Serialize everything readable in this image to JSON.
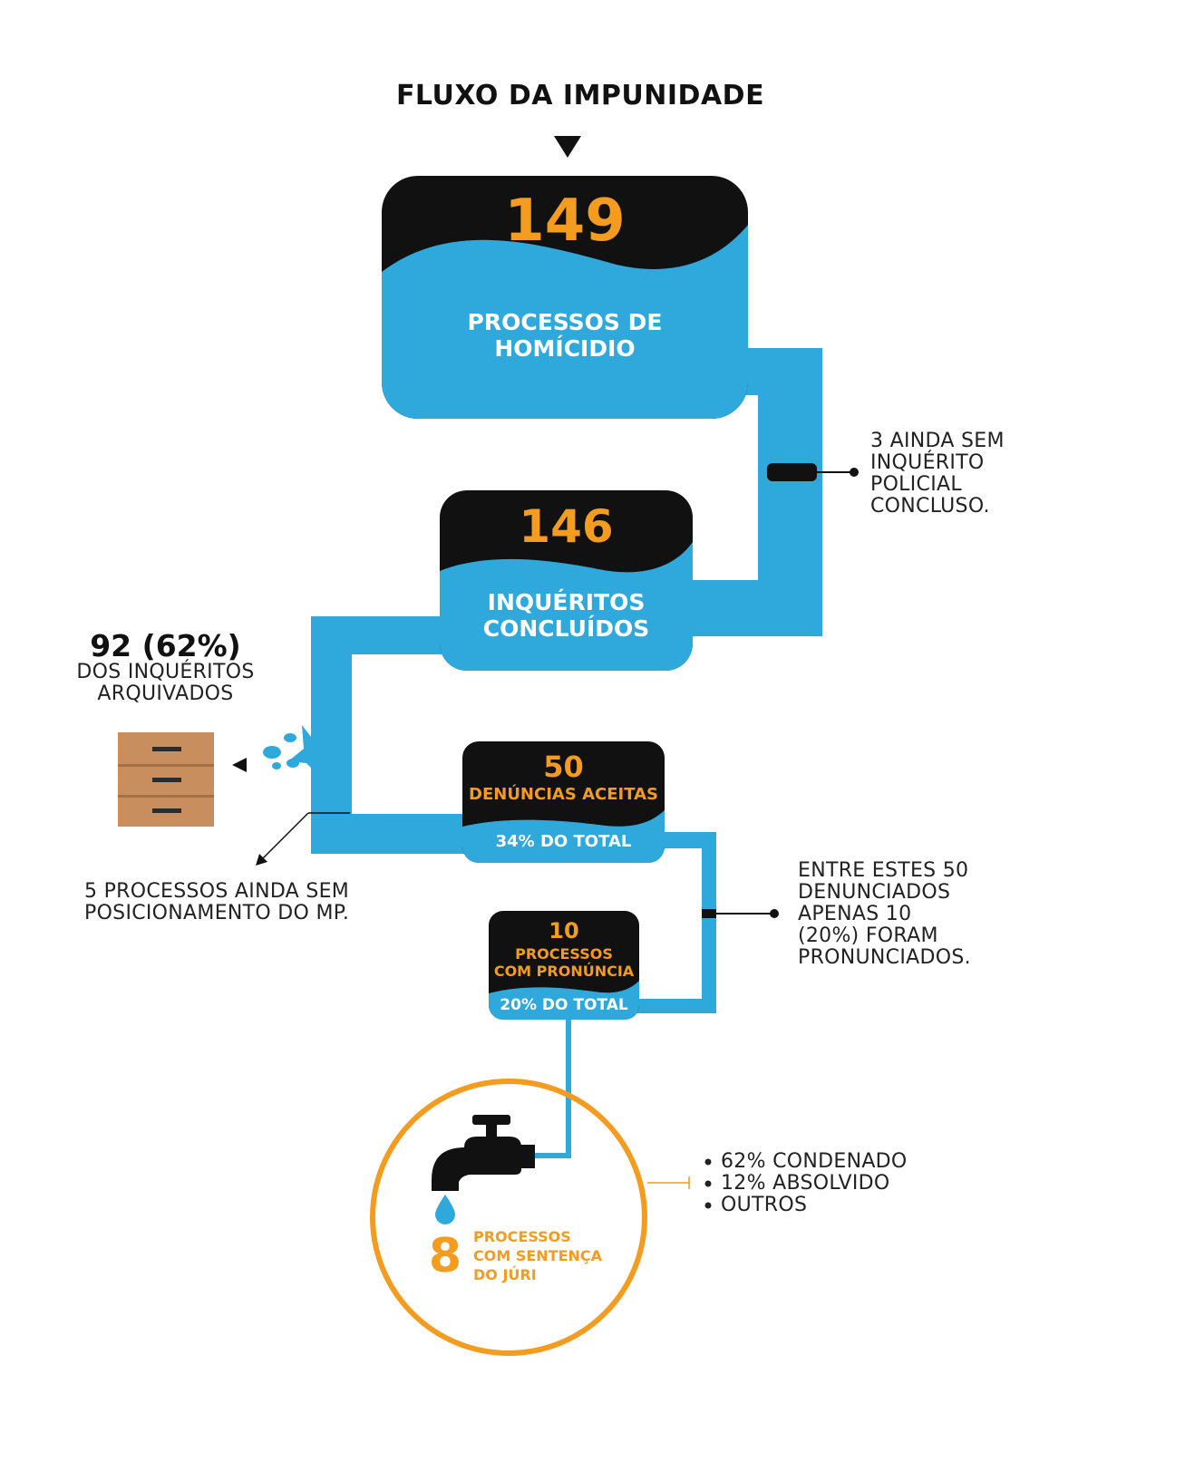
{
  "title": "FLUXO DA IMPUNIDADE",
  "colors": {
    "water": "#2fa8dc",
    "black": "#111111",
    "orange": "#f39c1f",
    "drawer": "#c98e5e"
  },
  "nodes": {
    "homicidios": {
      "number": "149",
      "line1": "PROCESSOS DE",
      "line2": "HOMÍCIDIO"
    },
    "inqueritos": {
      "number": "146",
      "line1": "INQUÉRITOS",
      "line2": "CONCLUÍDOS"
    },
    "denuncias": {
      "number": "50",
      "label": "DENÚNCIAS ACEITAS",
      "pct": "34% DO TOTAL"
    },
    "pronuncia": {
      "number": "10",
      "line1": "PROCESSOS",
      "line2": "COM PRONÚNCIA",
      "pct": "20% DO TOTAL"
    },
    "sentenca": {
      "number": "8",
      "line1": "PROCESSOS",
      "line2": "COM SENTENÇA",
      "line3": "DO JÚRI"
    }
  },
  "notes": {
    "sem_inquerito": [
      "3 AINDA SEM",
      "INQUÉRITO",
      "POLICIAL",
      "CONCLUSO."
    ],
    "arquivados": {
      "number": "92 (62%)",
      "line1": "DOS INQUÉRITOS",
      "line2": "ARQUIVADOS"
    },
    "sem_mp": [
      "5 PROCESSOS AINDA SEM",
      "POSICIONAMENTO DO MP."
    ],
    "pronunciados": [
      "ENTRE ESTES 50",
      "DENUNCIADOS",
      "APENAS 10",
      "(20%) FORAM",
      "PRONUNCIADOS."
    ],
    "resultados": [
      "62% CONDENADO",
      "12% ABSOLVIDO",
      "OUTROS"
    ]
  },
  "icons": {
    "faucet": "faucet-icon",
    "drop": "water-drop-icon",
    "drawers": "file-drawers-icon",
    "splash": "water-splash-icon"
  }
}
